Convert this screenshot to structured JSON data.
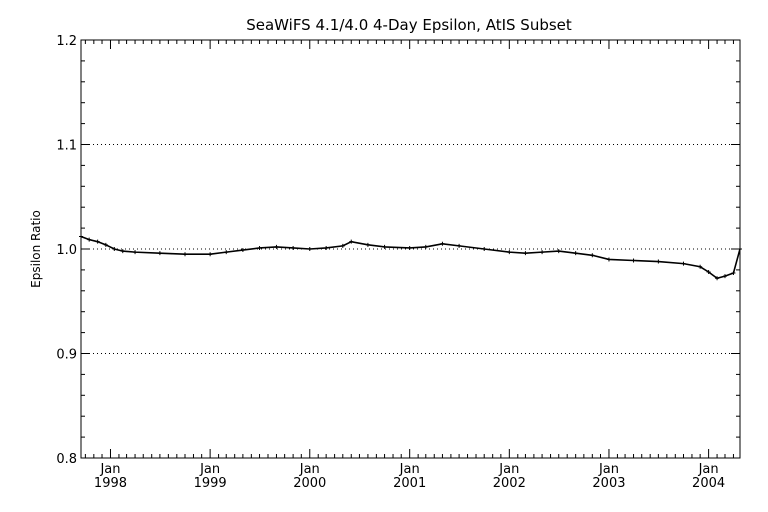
{
  "chart_data": {
    "type": "line",
    "title": "SeaWiFS 4.1/4.0 4-Day Epsilon, AtIS Subset",
    "xlabel": "",
    "ylabel": "Epsilon Ratio",
    "ylim": [
      0.8,
      1.2
    ],
    "xlim": [
      "1997-09-15",
      "2004-04-25"
    ],
    "yticks": [
      "0.8",
      "0.9",
      "1.0",
      "1.1",
      "1.2"
    ],
    "ygrid": [
      0.9,
      1.0,
      1.1
    ],
    "xticks": [
      {
        "date": "1998-01-01",
        "month": "Jan",
        "year": "1998"
      },
      {
        "date": "1999-01-01",
        "month": "Jan",
        "year": "1999"
      },
      {
        "date": "2000-01-01",
        "month": "Jan",
        "year": "2000"
      },
      {
        "date": "2001-01-01",
        "month": "Jan",
        "year": "2001"
      },
      {
        "date": "2002-01-01",
        "month": "Jan",
        "year": "2002"
      },
      {
        "date": "2003-01-01",
        "month": "Jan",
        "year": "2003"
      },
      {
        "date": "2004-01-01",
        "month": "Jan",
        "year": "2004"
      }
    ],
    "grid": "horizontal dotted",
    "series": [
      {
        "x": [
          "1997-09-15",
          "1997-10-15",
          "1997-11-15",
          "1997-12-15",
          "1998-01-15",
          "1998-02-15",
          "1998-04-01",
          "1998-07-01",
          "1998-10-01",
          "1999-01-01",
          "1999-03-01",
          "1999-05-01",
          "1999-07-01",
          "1999-09-01",
          "1999-11-01",
          "2000-01-01",
          "2000-03-01",
          "2000-05-01",
          "2000-06-01",
          "2000-08-01",
          "2000-10-01",
          "2001-01-01",
          "2001-03-01",
          "2001-05-01",
          "2001-07-01",
          "2001-10-01",
          "2002-01-01",
          "2002-03-01",
          "2002-05-01",
          "2002-07-01",
          "2002-09-01",
          "2002-11-01",
          "2003-01-01",
          "2003-04-01",
          "2003-07-01",
          "2003-10-01",
          "2003-12-01",
          "2004-01-01",
          "2004-02-01",
          "2004-03-01",
          "2004-04-01",
          "2004-04-25"
        ],
        "y": [
          1.012,
          1.009,
          1.007,
          1.004,
          1.0,
          0.998,
          0.997,
          0.996,
          0.995,
          0.995,
          0.997,
          0.999,
          1.001,
          1.002,
          1.001,
          1.0,
          1.001,
          1.003,
          1.007,
          1.004,
          1.002,
          1.001,
          1.002,
          1.005,
          1.003,
          1.0,
          0.997,
          0.996,
          0.997,
          0.998,
          0.996,
          0.994,
          0.99,
          0.989,
          0.988,
          0.986,
          0.983,
          0.978,
          0.972,
          0.974,
          0.977,
          1.0
        ]
      }
    ]
  }
}
